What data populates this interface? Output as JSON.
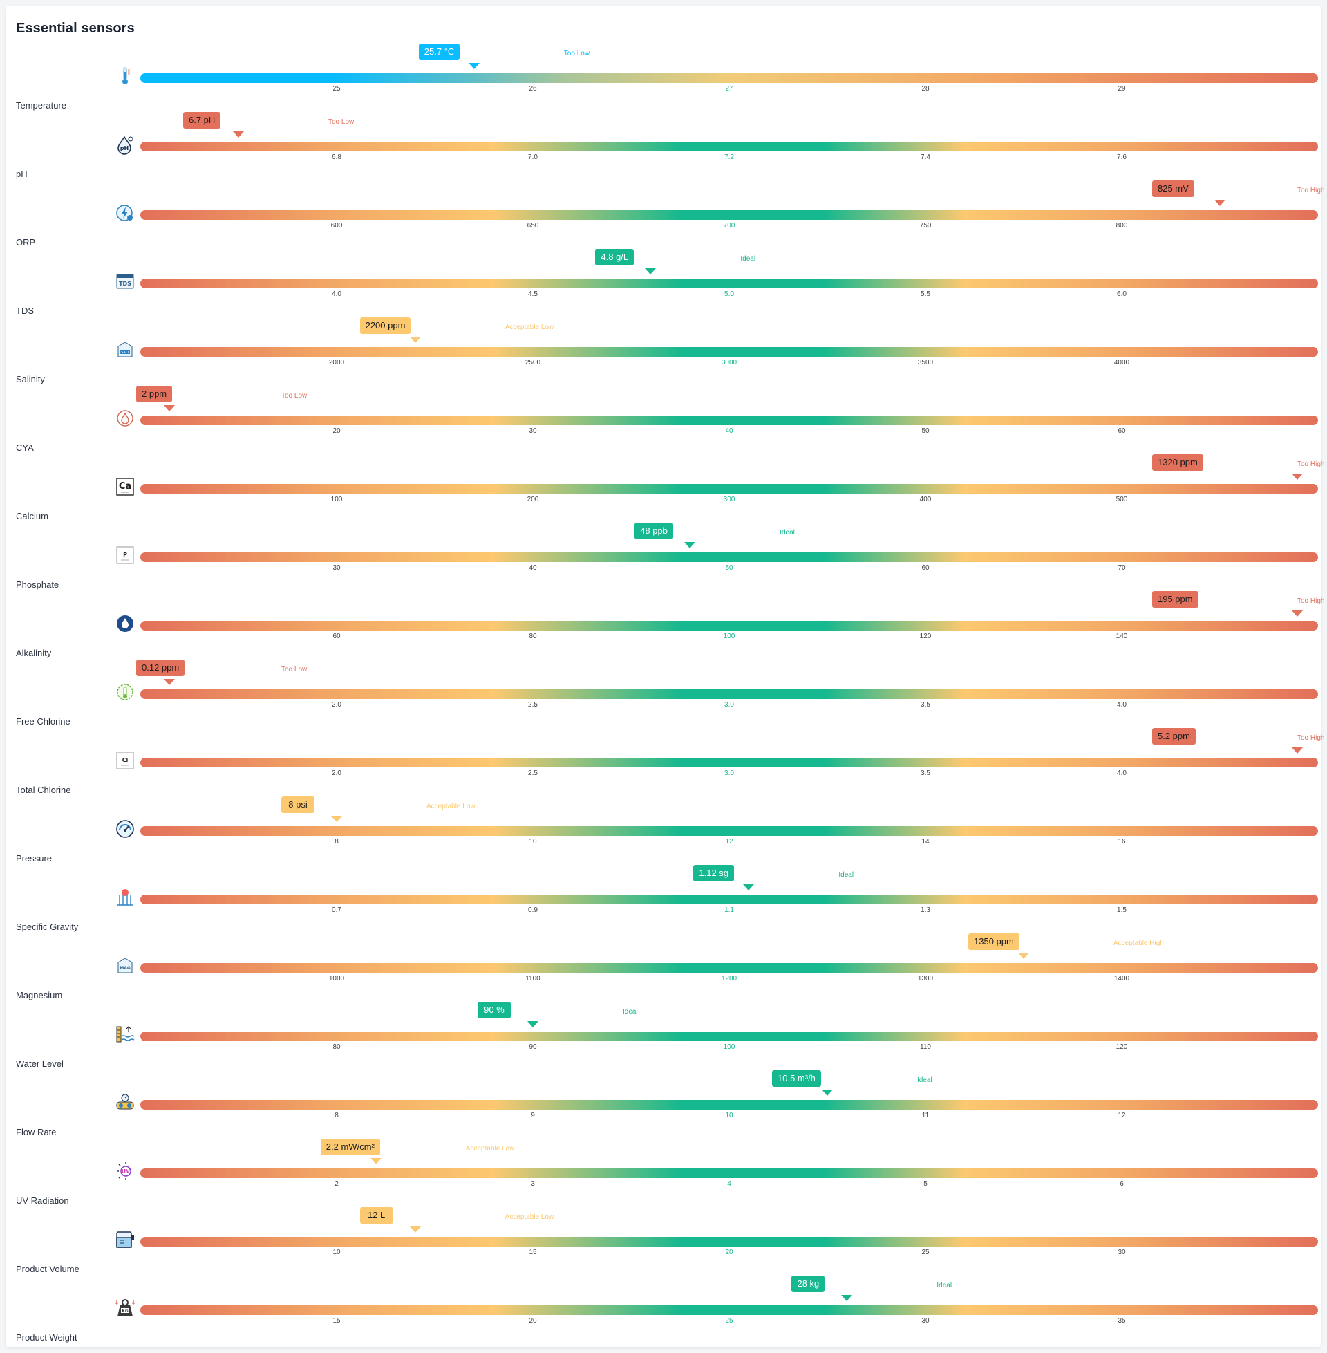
{
  "page": {
    "title": "Essential sensors"
  },
  "colors": {
    "red": "#e2705a",
    "orange": "#f2a765",
    "yellow": "#fcc870",
    "green": "#15b88f",
    "blue": "#0bbcff",
    "tick_text": "#444444",
    "tick_mid": "#15b88f"
  },
  "sensors": [
    {
      "label": "Temperature",
      "icon": "thermometer-icon",
      "value": 25.7,
      "value_text": "25.7 °C",
      "status": "Too Low",
      "status_color": "#0bbcff",
      "bubble_color": "#0bbcff",
      "marker_color": "#0bbcff",
      "range": [
        24,
        30
      ],
      "ticks": [
        "25",
        "26",
        "27",
        "28",
        "29"
      ],
      "gradient": "temperature"
    },
    {
      "label": "pH",
      "icon": "ph-drop-icon",
      "value": 6.7,
      "value_text": "6.7 pH",
      "status": "Too Low",
      "status_color": "#e2705a",
      "bubble_color": "#e2705a",
      "marker_color": "#e2705a",
      "range": [
        6.6,
        7.8
      ],
      "ticks": [
        "6.8",
        "7.0",
        "7.2",
        "7.4",
        "7.6"
      ]
    },
    {
      "label": "ORP",
      "icon": "orp-bolt-icon",
      "value": 825,
      "value_text": "825 mV",
      "status": "Too High",
      "status_color": "#e2705a",
      "bubble_color": "#e2705a",
      "marker_color": "#e2705a",
      "range": [
        550,
        850
      ],
      "ticks": [
        "600",
        "650",
        "700",
        "750",
        "800"
      ]
    },
    {
      "label": "TDS",
      "icon": "tds-icon",
      "value": 4.8,
      "value_text": "4.8 g/L",
      "status": "Ideal",
      "status_color": "#15b88f",
      "bubble_color": "#15b88f",
      "marker_color": "#15b88f",
      "range": [
        3.5,
        6.5
      ],
      "ticks": [
        "4.0",
        "4.5",
        "5.0",
        "5.5",
        "6.0"
      ]
    },
    {
      "label": "Salinity",
      "icon": "salt-icon",
      "value": 2200,
      "value_text": "2200 ppm",
      "status": "Acceptable Low",
      "status_color": "#fcc870",
      "bubble_color": "#fcc870",
      "marker_color": "#fcc870",
      "range": [
        1500,
        4500
      ],
      "ticks": [
        "2000",
        "2500",
        "3000",
        "3500",
        "4000"
      ]
    },
    {
      "label": "CYA",
      "icon": "cya-icon",
      "value": 2,
      "value_text": "2 ppm",
      "status": "Too Low",
      "status_color": "#e2705a",
      "bubble_color": "#e2705a",
      "marker_color": "#e2705a",
      "range": [
        10,
        70
      ],
      "ticks": [
        "20",
        "30",
        "40",
        "50",
        "60"
      ]
    },
    {
      "label": "Calcium",
      "icon": "calcium-icon",
      "value": 1320,
      "value_text": "1320 ppm",
      "status": "Too High",
      "status_color": "#e2705a",
      "bubble_color": "#e2705a",
      "marker_color": "#e2705a",
      "range": [
        0,
        600
      ],
      "ticks": [
        "100",
        "200",
        "300",
        "400",
        "500"
      ]
    },
    {
      "label": "Phosphate",
      "icon": "phosphate-icon",
      "value": 48,
      "value_text": "48 ppb",
      "status": "Ideal",
      "status_color": "#15b88f",
      "bubble_color": "#15b88f",
      "marker_color": "#15b88f",
      "range": [
        20,
        80
      ],
      "ticks": [
        "30",
        "40",
        "50",
        "60",
        "70"
      ]
    },
    {
      "label": "Alkalinity",
      "icon": "alkalinity-drop-icon",
      "value": 195,
      "value_text": "195 ppm",
      "status": "Too High",
      "status_color": "#e2705a",
      "bubble_color": "#e2705a",
      "marker_color": "#e2705a",
      "range": [
        40,
        160
      ],
      "ticks": [
        "60",
        "80",
        "100",
        "120",
        "140"
      ]
    },
    {
      "label": "Free Chlorine",
      "icon": "free-chlorine-icon",
      "value": 0.12,
      "value_text": "0.12 ppm",
      "status": "Too Low",
      "status_color": "#e2705a",
      "bubble_color": "#e2705a",
      "marker_color": "#e2705a",
      "range": [
        1.5,
        4.5
      ],
      "ticks": [
        "2.0",
        "2.5",
        "3.0",
        "3.5",
        "4.0"
      ]
    },
    {
      "label": "Total Chlorine",
      "icon": "total-chlorine-icon",
      "value": 5.2,
      "value_text": "5.2 ppm",
      "status": "Too High",
      "status_color": "#e2705a",
      "bubble_color": "#e2705a",
      "marker_color": "#e2705a",
      "range": [
        1.5,
        4.5
      ],
      "ticks": [
        "2.0",
        "2.5",
        "3.0",
        "3.5",
        "4.0"
      ]
    },
    {
      "label": "Pressure",
      "icon": "pressure-gauge-icon",
      "value": 8,
      "value_text": "8 psi",
      "status": "Acceptable Low",
      "status_color": "#fcc870",
      "bubble_color": "#fcc870",
      "marker_color": "#fcc870",
      "range": [
        6,
        18
      ],
      "ticks": [
        "8",
        "10",
        "12",
        "14",
        "16"
      ]
    },
    {
      "label": "Specific Gravity",
      "icon": "specific-gravity-icon",
      "value": 1.12,
      "value_text": "1.12 sg",
      "status": "Ideal",
      "status_color": "#15b88f",
      "bubble_color": "#15b88f",
      "marker_color": "#15b88f",
      "range": [
        0.5,
        1.7
      ],
      "ticks": [
        "0.7",
        "0.9",
        "1.1",
        "1.3",
        "1.5"
      ]
    },
    {
      "label": "Magnesium",
      "icon": "magnesium-icon",
      "value": 1350,
      "value_text": "1350 ppm",
      "status": "Acceptable High",
      "status_color": "#fcc870",
      "bubble_color": "#fcc870",
      "marker_color": "#fcc870",
      "range": [
        900,
        1500
      ],
      "ticks": [
        "1000",
        "1100",
        "1200",
        "1300",
        "1400"
      ]
    },
    {
      "label": "Water Level",
      "icon": "water-level-icon",
      "value": 90,
      "value_text": "90 %",
      "status": "Ideal",
      "status_color": "#15b88f",
      "bubble_color": "#15b88f",
      "marker_color": "#15b88f",
      "range": [
        70,
        130
      ],
      "ticks": [
        "80",
        "90",
        "100",
        "110",
        "120"
      ]
    },
    {
      "label": "Flow Rate",
      "icon": "flow-rate-icon",
      "value": 10.5,
      "value_text": "10.5 m³/h",
      "status": "Ideal",
      "status_color": "#15b88f",
      "bubble_color": "#15b88f",
      "marker_color": "#15b88f",
      "range": [
        7,
        13
      ],
      "ticks": [
        "8",
        "9",
        "10",
        "11",
        "12"
      ]
    },
    {
      "label": "UV Radiation",
      "icon": "uv-sun-icon",
      "value": 2.2,
      "value_text": "2.2 mW/cm²",
      "status": "Acceptable Low",
      "status_color": "#fcc870",
      "bubble_color": "#fcc870",
      "marker_color": "#fcc870",
      "range": [
        1,
        7
      ],
      "ticks": [
        "2",
        "3",
        "4",
        "5",
        "6"
      ]
    },
    {
      "label": "Product Volume",
      "icon": "product-volume-icon",
      "value": 12,
      "value_text": "12 L",
      "status": "Acceptable Low",
      "status_color": "#fcc870",
      "bubble_color": "#fcc870",
      "marker_color": "#fcc870",
      "range": [
        5,
        35
      ],
      "ticks": [
        "10",
        "15",
        "20",
        "25",
        "30"
      ]
    },
    {
      "label": "Product Weight",
      "icon": "product-weight-icon",
      "value": 28,
      "value_text": "28 kg",
      "status": "Ideal",
      "status_color": "#15b88f",
      "bubble_color": "#15b88f",
      "marker_color": "#15b88f",
      "range": [
        10,
        40
      ],
      "ticks": [
        "15",
        "20",
        "25",
        "30",
        "35"
      ]
    }
  ]
}
